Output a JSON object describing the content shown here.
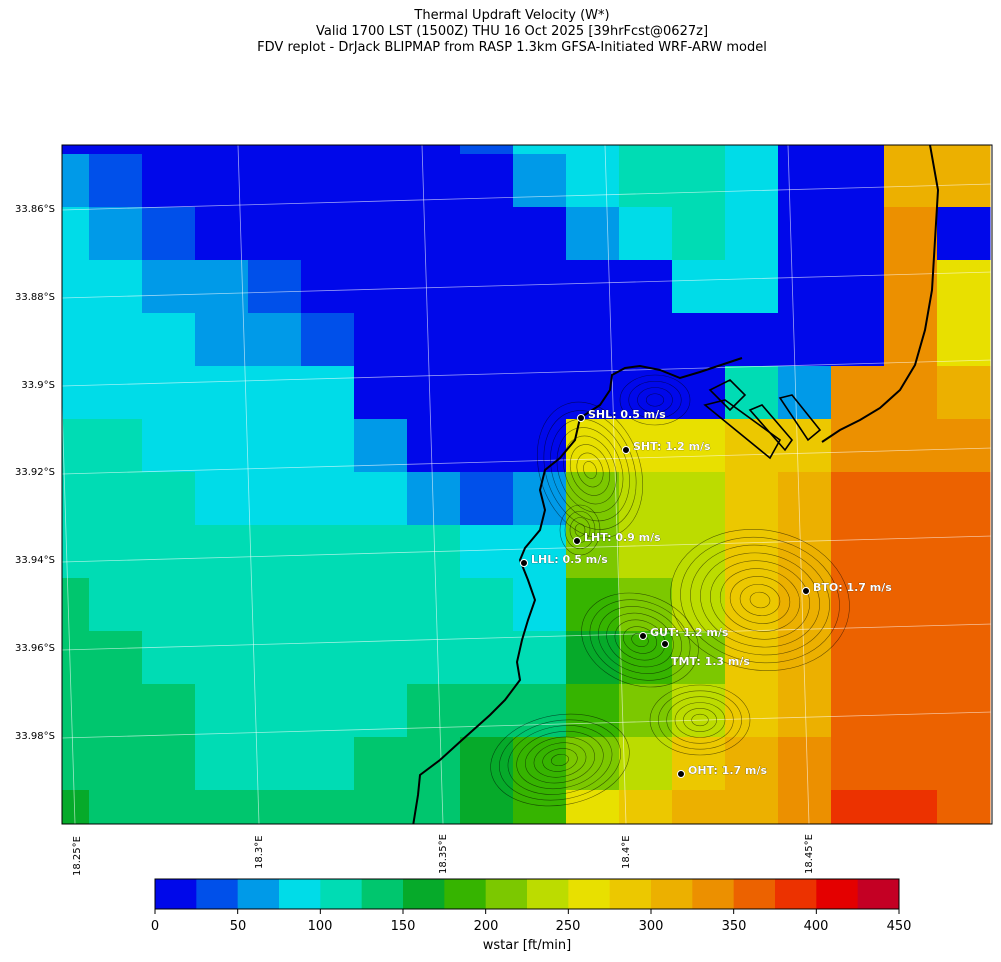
{
  "title": {
    "line1": "Thermal Updraft Velocity (W*)",
    "line2": "Valid 1700 LST (1500Z) THU 16 Oct 2025 [39hrFcst@0627z]",
    "line3": "FDV replot - DrJack BLIPMAP from RASP 1.3km GFSA-Initiated WRF-ARW model"
  },
  "lat_labels": [
    "33.86°S",
    "33.88°S",
    "33.9°S",
    "33.92°S",
    "33.94°S",
    "33.96°S",
    "33.98°S"
  ],
  "lon_labels": [
    "18.25°E",
    "18.3°E",
    "18.35°E",
    "18.4°E",
    "18.45°E"
  ],
  "sites": [
    {
      "name": "SHL",
      "label": "SHL: 0.5 m/s"
    },
    {
      "name": "SHT",
      "label": "SHT: 1.2 m/s"
    },
    {
      "name": "LHT",
      "label": "LHT: 0.9 m/s"
    },
    {
      "name": "LHL",
      "label": "LHL: 0.5 m/s"
    },
    {
      "name": "BTO",
      "label": "BTO: 1.7 m/s"
    },
    {
      "name": "GUT",
      "label": "GUT: 1.2 m/s"
    },
    {
      "name": "TMT",
      "label": "TMT: 1.3 m/s"
    },
    {
      "name": "OHT",
      "label": "OHT: 1.7 m/s"
    }
  ],
  "colorbar": {
    "label": "wstar [ft/min]",
    "ticks": [
      "0",
      "50",
      "100",
      "150",
      "200",
      "250",
      "300",
      "350",
      "400",
      "450"
    ],
    "colors": [
      "#0008ea",
      "#0050ea",
      "#009ae8",
      "#00dce8",
      "#00dcb4",
      "#00c66e",
      "#06aa2a",
      "#36b400",
      "#7cc800",
      "#bcdc00",
      "#e8e000",
      "#ecc800",
      "#ecb000",
      "#ec9000",
      "#ec6200",
      "#ec3200",
      "#e40000",
      "#c40024"
    ]
  },
  "grid_values": [
    [
      0,
      0,
      0,
      0,
      0,
      0,
      0,
      0,
      1,
      3,
      3,
      4,
      4,
      3,
      0,
      0,
      12,
      12
    ],
    [
      2,
      1,
      0,
      0,
      0,
      0,
      0,
      0,
      0,
      2,
      3,
      4,
      4,
      3,
      0,
      0,
      12,
      12
    ],
    [
      3,
      2,
      1,
      0,
      0,
      0,
      0,
      0,
      0,
      0,
      2,
      3,
      4,
      3,
      0,
      0,
      13,
      0
    ],
    [
      3,
      3,
      2,
      2,
      1,
      0,
      0,
      0,
      0,
      0,
      0,
      0,
      3,
      3,
      0,
      0,
      13,
      10
    ],
    [
      3,
      3,
      3,
      2,
      2,
      1,
      0,
      0,
      0,
      0,
      0,
      0,
      0,
      0,
      0,
      0,
      13,
      10
    ],
    [
      3,
      3,
      3,
      3,
      3,
      3,
      0,
      0,
      0,
      0,
      0,
      0,
      0,
      4,
      2,
      13,
      13,
      12
    ],
    [
      4,
      4,
      3,
      3,
      3,
      3,
      2,
      0,
      0,
      0,
      10,
      10,
      10,
      11,
      11,
      13,
      13,
      13
    ],
    [
      4,
      4,
      4,
      3,
      3,
      3,
      3,
      2,
      1,
      2,
      8,
      9,
      9,
      11,
      12,
      14,
      14,
      14
    ],
    [
      4,
      4,
      4,
      4,
      4,
      4,
      4,
      4,
      3,
      3,
      8,
      9,
      9,
      11,
      12,
      14,
      14,
      14
    ],
    [
      5,
      4,
      4,
      4,
      4,
      4,
      4,
      4,
      4,
      3,
      7,
      8,
      9,
      11,
      12,
      14,
      14,
      14
    ],
    [
      5,
      5,
      4,
      4,
      4,
      4,
      4,
      4,
      4,
      4,
      6,
      7,
      8,
      11,
      12,
      14,
      14,
      14
    ],
    [
      5,
      5,
      5,
      4,
      4,
      4,
      4,
      5,
      5,
      5,
      7,
      8,
      9,
      11,
      12,
      14,
      14,
      14
    ],
    [
      5,
      5,
      5,
      4,
      4,
      4,
      5,
      5,
      6,
      7,
      8,
      9,
      11,
      12,
      13,
      14,
      14,
      14
    ],
    [
      6,
      5,
      5,
      5,
      5,
      5,
      5,
      5,
      6,
      7,
      10,
      11,
      12,
      12,
      13,
      15,
      15,
      14
    ],
    [
      6,
      6,
      5,
      5,
      5,
      5,
      5,
      5,
      5,
      6,
      11,
      11,
      12,
      13,
      14,
      15,
      15,
      14
    ],
    [
      6,
      6,
      6,
      5,
      6,
      6,
      6,
      6,
      6,
      5,
      12,
      12,
      13,
      14,
      14,
      15,
      15,
      14
    ]
  ]
}
